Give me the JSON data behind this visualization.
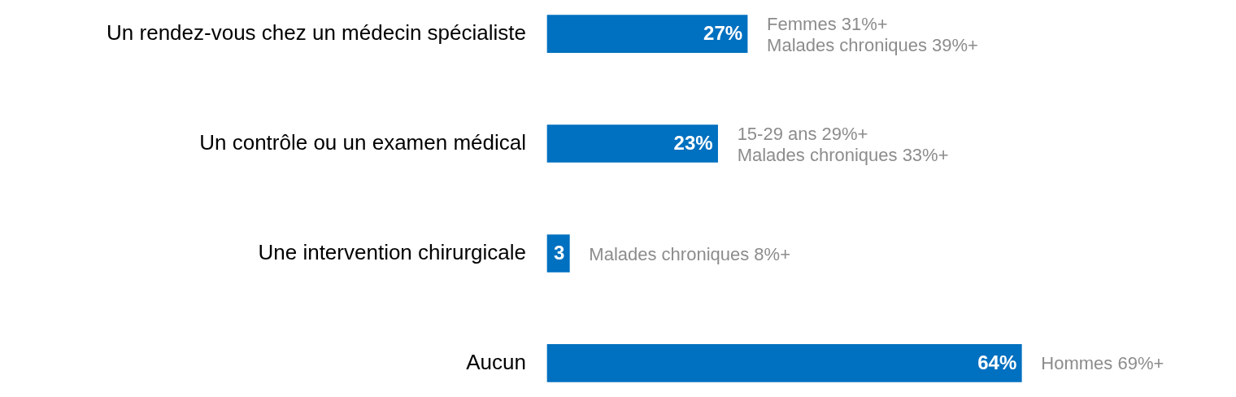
{
  "chart_data": {
    "type": "bar",
    "orientation": "horizontal",
    "categories": [
      "Un rendez-vous chez un médecin spécialiste",
      "Un contrôle ou un examen médical",
      "Une intervention chirurgicale",
      "Aucun"
    ],
    "values": [
      27,
      23,
      3,
      64
    ],
    "value_labels": [
      "27%",
      "23%",
      "3",
      "64%"
    ],
    "color": "#0070c0",
    "tick_labels": "y",
    "grid": false,
    "legend": false,
    "annotations": [
      {
        "text": "Femmes 31%+\nMalades chroniques 39%+",
        "x": 27,
        "y": "Un rendez-vous chez un médecin spécialiste"
      },
      {
        "text": "15-29 ans 29%+\nMalades chroniques 33%+",
        "x": 23,
        "y": "Un contrôle ou un examen médical"
      },
      {
        "text": "Malades chroniques 8%+",
        "x": 3,
        "y": "Une intervention chirurgicale"
      },
      {
        "text": "Hommes 69%+",
        "x": 64,
        "y": "Aucun"
      }
    ]
  }
}
